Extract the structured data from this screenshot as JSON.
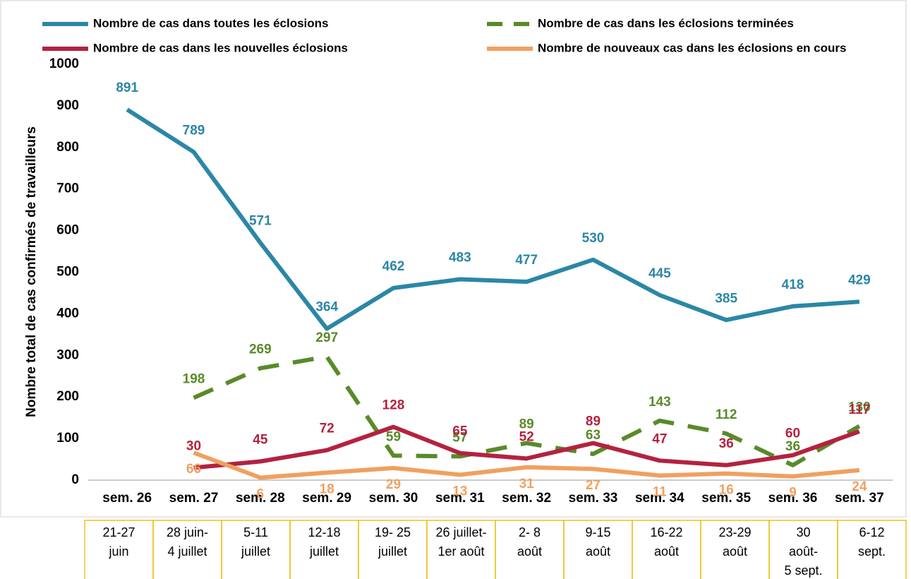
{
  "chart_data": {
    "type": "line",
    "y_label": "Nombre total de cas confirmés de travailleurs",
    "categories": [
      "sem. 26",
      "sem. 27",
      "sem. 28",
      "sem. 29",
      "sem. 30",
      "sem. 31",
      "sem. 32",
      "sem. 33",
      "sem. 34",
      "sem. 35",
      "sem. 36",
      "sem. 37"
    ],
    "series": [
      {
        "name": "Nombre de cas dans toutes les éclosions",
        "color": "#2b87a5",
        "dash": false,
        "values": [
          891,
          789,
          571,
          364,
          462,
          483,
          477,
          530,
          445,
          385,
          418,
          429
        ]
      },
      {
        "name": "Nombre de cas dans les éclosions terminées",
        "color": "#5a8a2a",
        "dash": true,
        "values": [
          null,
          198,
          269,
          297,
          59,
          57,
          89,
          63,
          143,
          112,
          36,
          130
        ]
      },
      {
        "name": "Nombre de cas dans les nouvelles éclosions",
        "color": "#b3223f",
        "dash": false,
        "values": [
          null,
          30,
          45,
          72,
          128,
          65,
          52,
          89,
          47,
          36,
          60,
          117
        ]
      },
      {
        "name": "Nombre de nouveaux cas dans les éclosions en cours",
        "color": "#f0a060",
        "dash": false,
        "values": [
          null,
          66,
          6,
          18,
          29,
          13,
          31,
          27,
          11,
          16,
          9,
          24
        ]
      }
    ],
    "ylim": [
      0,
      1000
    ],
    "yticks": [
      0,
      100,
      200,
      300,
      400,
      500,
      600,
      700,
      800,
      900,
      1000
    ],
    "grid": false,
    "legend": "top"
  },
  "date_ranges": [
    [
      "21-27",
      "juin"
    ],
    [
      "28 juin-",
      "4 juillet"
    ],
    [
      "5-11",
      "juillet"
    ],
    [
      "12-18",
      "juillet"
    ],
    [
      "19- 25",
      "juillet"
    ],
    [
      "26 juillet-",
      "1er août"
    ],
    [
      "2- 8",
      "août"
    ],
    [
      "9-15",
      "août"
    ],
    [
      "16-22",
      "août"
    ],
    [
      "23-29",
      "août"
    ],
    [
      "30",
      "août-",
      "5 sept."
    ],
    [
      "6-12",
      "sept."
    ]
  ]
}
